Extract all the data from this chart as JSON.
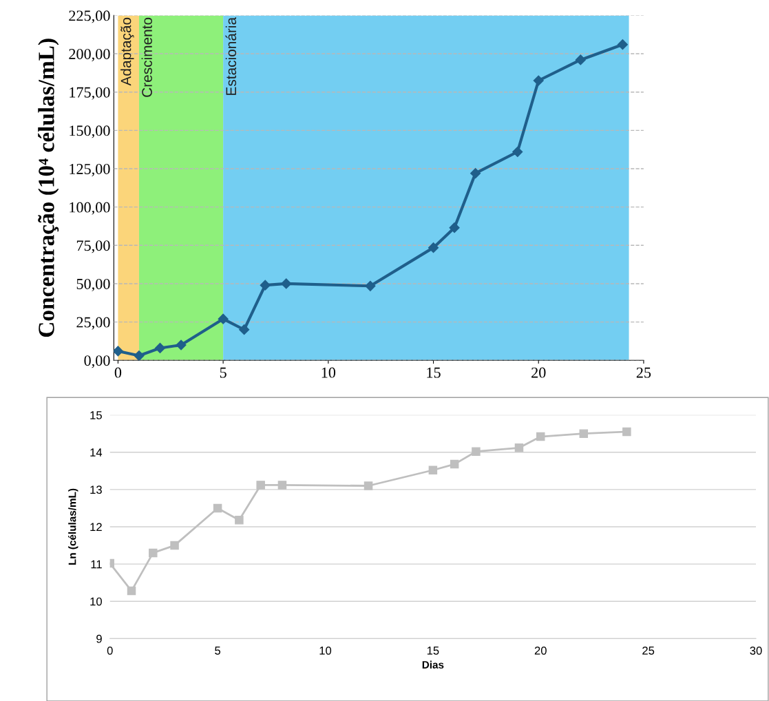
{
  "chart_data": [
    {
      "type": "line",
      "ylabel": "Concentração (10⁴ células/mL)",
      "x": [
        0,
        1,
        2,
        3,
        5,
        6,
        7,
        8,
        12,
        15,
        16,
        17,
        19,
        20,
        22,
        24
      ],
      "series": [
        {
          "color": "#1f5f8b",
          "values": [
            6,
            3,
            8,
            10,
            27,
            20,
            49,
            50,
            48.5,
            73.5,
            86.5,
            122,
            136,
            182.5,
            196,
            206
          ]
        }
      ],
      "xlim": [
        -0.2,
        25
      ],
      "xticks": [
        0,
        5,
        10,
        15,
        20,
        25
      ],
      "ylim": [
        0,
        225
      ],
      "yticks": [
        {
          "value": 0,
          "label": "0,00"
        },
        {
          "value": 25,
          "label": "25,00"
        },
        {
          "value": 50,
          "label": "50,00"
        },
        {
          "value": 75,
          "label": "75,00"
        },
        {
          "value": 100,
          "label": "100,00"
        },
        {
          "value": 125,
          "label": "125,00"
        },
        {
          "value": 150,
          "label": "150,00"
        },
        {
          "value": 175,
          "label": "175,00"
        },
        {
          "value": 200,
          "label": "200,00"
        },
        {
          "value": 225,
          "label": "225,00"
        }
      ],
      "bands": [
        {
          "axis": "x",
          "from": 0,
          "to": 1,
          "label": "Adaptação",
          "color": "#fbd57a"
        },
        {
          "axis": "x",
          "from": 1,
          "to": 5,
          "label": "Crescimento",
          "color": "#8ef07a"
        },
        {
          "axis": "x",
          "from": 5,
          "to": 24.3,
          "label": "Estacionária",
          "color": "#73cef2"
        }
      ],
      "grid": "y",
      "marker": "diamond",
      "line_style": "solid",
      "legend": false
    },
    {
      "type": "line",
      "xlabel": "Dias",
      "ylabel": "Ln (células/mL)",
      "x": [
        0,
        1,
        2,
        3,
        5,
        6,
        7,
        8,
        12,
        15,
        16,
        17,
        19,
        20,
        22,
        24
      ],
      "series": [
        {
          "color": "#bfbfbf",
          "values": [
            11.02,
            10.28,
            11.3,
            11.5,
            12.5,
            12.18,
            13.12,
            13.12,
            13.1,
            13.52,
            13.68,
            14.02,
            14.12,
            14.42,
            14.5,
            14.55
          ]
        }
      ],
      "xlim": [
        0,
        30
      ],
      "xticks": [
        0,
        5,
        10,
        15,
        20,
        25,
        30
      ],
      "ylim": [
        9,
        15
      ],
      "yticks": [
        9,
        10,
        11,
        12,
        13,
        14,
        15
      ],
      "grid": "y",
      "marker": "square",
      "line_style": "solid",
      "legend": false
    }
  ]
}
